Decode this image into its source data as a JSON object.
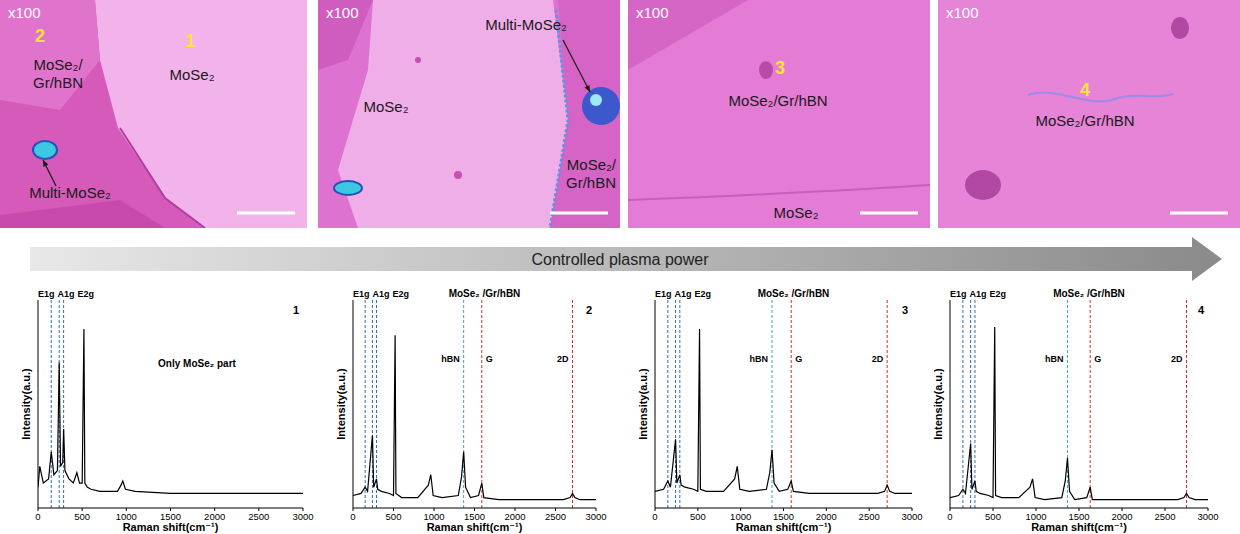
{
  "figure_label": "Controlled plasma power",
  "micrographs": [
    {
      "magnification": "x100",
      "labels": [
        {
          "text": "2"
        },
        {
          "lines": [
            "MoSe₂/",
            "Gr/hBN"
          ]
        },
        {
          "text": "1"
        },
        {
          "text": "MoSe₂"
        },
        {
          "text": "Multi-MoSe₂"
        }
      ]
    },
    {
      "magnification": "x100",
      "labels": [
        {
          "text": "MoSe₂"
        },
        {
          "text": "Multi-MoSe₂"
        },
        {
          "lines": [
            "MoSe₂/",
            "Gr/hBN"
          ]
        }
      ]
    },
    {
      "magnification": "x100",
      "labels": [
        {
          "text": "3"
        },
        {
          "text": "MoSe₂/Gr/hBN"
        },
        {
          "text": "MoSe₂"
        }
      ]
    },
    {
      "magnification": "x100",
      "labels": [
        {
          "text": "4"
        },
        {
          "text": "MoSe₂/Gr/hBN"
        }
      ]
    }
  ],
  "chart_data": [
    {
      "type": "line",
      "panel_label": "1",
      "annotation": "Only MoSe₂ part",
      "x_label": "Raman shift(cm⁻¹)",
      "y_label": "Intensity(a.u.)",
      "xlim": [
        0,
        3000
      ],
      "xticks": [
        0,
        500,
        1000,
        1500,
        2000,
        2500,
        3000
      ],
      "ylim": [
        0,
        100
      ],
      "yticks": [],
      "tick_labels": "x",
      "reference_lines": [
        {
          "label": "E1g",
          "x": 150,
          "color": "#2e6db4"
        },
        {
          "label": "A1g",
          "x": 240,
          "color": "#2e6db4"
        },
        {
          "label": "E2g",
          "x": 290,
          "color": "#2e6db4"
        }
      ],
      "series": [
        {
          "color": "#000000",
          "x": [
            0,
            20,
            60,
            120,
            150,
            180,
            220,
            240,
            255,
            280,
            290,
            305,
            350,
            400,
            440,
            470,
            500,
            520,
            530,
            560,
            600,
            700,
            800,
            900,
            940,
            960,
            990,
            1100,
            1500,
            2000,
            2500,
            3000
          ],
          "values": [
            10,
            20,
            12,
            14,
            27,
            16,
            18,
            70,
            20,
            22,
            38,
            18,
            14,
            12,
            17,
            12,
            12,
            86,
            12,
            10,
            9,
            8,
            8,
            8,
            11,
            13,
            9,
            8,
            7,
            7,
            7,
            7
          ]
        }
      ]
    },
    {
      "type": "line",
      "panel_label": "2",
      "title": "MoSe₂ /Gr/hBN",
      "x_label": "Raman shift(cm⁻¹)",
      "y_label": "Intensity(a.u.)",
      "xlim": [
        0,
        3000
      ],
      "xticks": [
        0,
        500,
        1000,
        1500,
        2000,
        2500,
        3000
      ],
      "ylim": [
        0,
        100
      ],
      "yticks": [],
      "tick_labels": "x",
      "reference_lines": [
        {
          "label": "E1g",
          "x": 150,
          "color": "#2e6db4"
        },
        {
          "label": "A1g",
          "x": 240,
          "color": "#2e6db4"
        },
        {
          "label": "E2g",
          "x": 290,
          "color": "#2e6db4"
        },
        {
          "label": "hBN",
          "x": 1366,
          "color": "#3aa8b8"
        },
        {
          "label": "G",
          "x": 1590,
          "color": "#d03030"
        },
        {
          "label": "2D",
          "x": 2710,
          "color": "#d03030"
        }
      ],
      "series": [
        {
          "color": "#000000",
          "x": [
            0,
            100,
            150,
            180,
            240,
            255,
            290,
            305,
            350,
            450,
            500,
            520,
            530,
            600,
            800,
            930,
            960,
            990,
            1100,
            1300,
            1340,
            1366,
            1390,
            1450,
            1550,
            1590,
            1615,
            1800,
            2600,
            2680,
            2710,
            2740,
            2800,
            3000
          ],
          "values": [
            6,
            7,
            10,
            8,
            35,
            10,
            14,
            9,
            8,
            7,
            6,
            83,
            7,
            5,
            5,
            11,
            16,
            6,
            5,
            6,
            15,
            27,
            10,
            5,
            6,
            12,
            5,
            4,
            4,
            5,
            7,
            5,
            4,
            4
          ]
        }
      ]
    },
    {
      "type": "line",
      "panel_label": "3",
      "title": "MoSe₂ /Gr/hBN",
      "x_label": "Raman shift(cm⁻¹)",
      "y_label": "Intensity(a.u.)",
      "xlim": [
        0,
        3000
      ],
      "xticks": [
        0,
        500,
        1000,
        1500,
        2000,
        2500,
        3000
      ],
      "ylim": [
        0,
        100
      ],
      "yticks": [],
      "tick_labels": "x",
      "reference_lines": [
        {
          "label": "E1g",
          "x": 150,
          "color": "#2e6db4"
        },
        {
          "label": "A1g",
          "x": 240,
          "color": "#2e6db4"
        },
        {
          "label": "E2g",
          "x": 290,
          "color": "#2e6db4"
        },
        {
          "label": "hBN",
          "x": 1366,
          "color": "#3aa8b8"
        },
        {
          "label": "G",
          "x": 1590,
          "color": "#d03030"
        },
        {
          "label": "2D",
          "x": 2710,
          "color": "#d03030"
        }
      ],
      "series": [
        {
          "color": "#000000",
          "x": [
            0,
            100,
            150,
            180,
            240,
            255,
            290,
            305,
            350,
            450,
            500,
            520,
            530,
            600,
            800,
            930,
            960,
            990,
            1100,
            1300,
            1340,
            1366,
            1390,
            1450,
            1550,
            1590,
            1615,
            1800,
            2600,
            2680,
            2710,
            2740,
            2800,
            3000
          ],
          "values": [
            8,
            9,
            13,
            10,
            33,
            12,
            16,
            11,
            10,
            9,
            8,
            86,
            9,
            8,
            8,
            14,
            20,
            9,
            8,
            9,
            17,
            28,
            12,
            8,
            9,
            13,
            8,
            7,
            7,
            8,
            11,
            8,
            7,
            7
          ]
        }
      ]
    },
    {
      "type": "line",
      "panel_label": "4",
      "title": "MoSe₂ /Gr/hBN",
      "x_label": "Raman shift(cm⁻¹)",
      "y_label": "Intensity(a.u.)",
      "xlim": [
        0,
        3000
      ],
      "xticks": [
        0,
        500,
        1000,
        1500,
        2000,
        2500,
        3000
      ],
      "ylim": [
        0,
        100
      ],
      "yticks": [],
      "tick_labels": "x",
      "reference_lines": [
        {
          "label": "E1g",
          "x": 150,
          "color": "#2e6db4"
        },
        {
          "label": "A1g",
          "x": 240,
          "color": "#2e6db4"
        },
        {
          "label": "E2g",
          "x": 290,
          "color": "#2e6db4"
        },
        {
          "label": "hBN",
          "x": 1366,
          "color": "#3aa8b8"
        },
        {
          "label": "G",
          "x": 1630,
          "color": "#d03030"
        },
        {
          "label": "2D",
          "x": 2750,
          "color": "#d03030"
        }
      ],
      "series": [
        {
          "color": "#000000",
          "x": [
            0,
            100,
            150,
            180,
            240,
            255,
            290,
            305,
            350,
            450,
            500,
            520,
            530,
            600,
            800,
            930,
            960,
            990,
            1100,
            1300,
            1340,
            1366,
            1390,
            1450,
            1590,
            1630,
            1655,
            1800,
            2650,
            2720,
            2750,
            2780,
            2850,
            3000
          ],
          "values": [
            5,
            6,
            9,
            7,
            31,
            9,
            13,
            8,
            7,
            6,
            5,
            87,
            6,
            5,
            5,
            10,
            14,
            5,
            4,
            5,
            13,
            24,
            8,
            4,
            5,
            10,
            4,
            4,
            4,
            5,
            7,
            5,
            4,
            4
          ]
        }
      ]
    }
  ]
}
